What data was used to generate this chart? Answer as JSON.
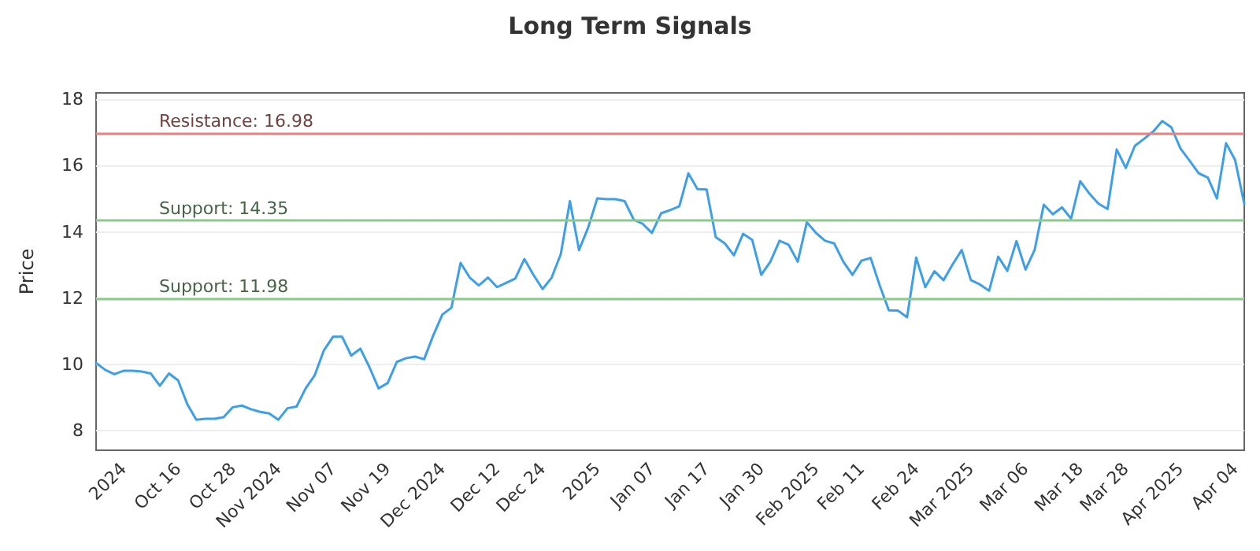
{
  "chart_data": {
    "type": "line",
    "title": "Long Term Signals",
    "ylabel": "Price",
    "categories": [
      null,
      null,
      null,
      "2024",
      null,
      null,
      null,
      null,
      null,
      "Oct 16",
      null,
      null,
      null,
      null,
      null,
      "Oct 28",
      null,
      null,
      null,
      null,
      "Nov 2024",
      null,
      null,
      null,
      null,
      null,
      "Nov 07",
      null,
      null,
      null,
      null,
      null,
      "Nov 19",
      null,
      null,
      null,
      null,
      null,
      "Dec 2024",
      null,
      null,
      null,
      null,
      null,
      "Dec 12",
      null,
      null,
      null,
      null,
      "Dec 24",
      null,
      null,
      null,
      null,
      null,
      "2025",
      null,
      null,
      null,
      null,
      null,
      "Jan 07",
      null,
      null,
      null,
      null,
      null,
      "Jan 17",
      null,
      null,
      null,
      null,
      null,
      "Jan 30",
      null,
      null,
      null,
      null,
      null,
      "Feb 2025",
      null,
      null,
      null,
      null,
      "Feb 11",
      null,
      null,
      null,
      null,
      null,
      "Feb 24",
      null,
      null,
      null,
      null,
      null,
      "Mar 2025",
      null,
      null,
      null,
      null,
      null,
      "Mar 06",
      null,
      null,
      null,
      null,
      null,
      "Mar 18",
      null,
      null,
      null,
      null,
      "Mar 28",
      null,
      null,
      null,
      null,
      null,
      "Apr 2025",
      null,
      null,
      null,
      null,
      null,
      "Apr 04",
      null
    ],
    "series": [
      {
        "color": "#3d9fe8",
        "values": [
          10.04,
          9.83,
          9.7,
          9.8,
          9.8,
          9.78,
          9.72,
          9.35,
          9.72,
          9.51,
          8.8,
          8.32,
          8.35,
          8.35,
          8.4,
          8.7,
          8.75,
          8.64,
          8.56,
          8.51,
          8.32,
          8.67,
          8.72,
          9.27,
          9.67,
          10.42,
          10.83,
          10.83,
          10.26,
          10.47,
          9.91,
          9.27,
          9.43,
          10.07,
          10.18,
          10.23,
          10.15,
          10.87,
          11.5,
          11.71,
          13.06,
          12.62,
          12.38,
          12.62,
          12.33,
          12.46,
          12.59,
          13.18,
          12.7,
          12.27,
          12.62,
          13.33,
          14.93,
          13.45,
          14.13,
          15.01,
          14.99,
          14.99,
          14.93,
          14.37,
          14.24,
          13.97,
          14.56,
          14.66,
          14.77,
          15.77,
          15.29,
          15.28,
          13.84,
          13.65,
          13.29,
          13.94,
          13.76,
          12.7,
          13.1,
          13.73,
          13.61,
          13.1,
          14.29,
          13.97,
          13.73,
          13.65,
          13.1,
          12.7,
          13.13,
          13.21,
          12.38,
          11.63,
          11.62,
          11.42,
          13.22,
          12.33,
          12.81,
          12.54,
          13.02,
          13.45,
          12.54,
          12.41,
          12.22,
          13.25,
          12.82,
          13.72,
          12.86,
          13.46,
          14.82,
          14.53,
          14.74,
          14.4,
          15.53,
          15.16,
          14.85,
          14.69,
          16.49,
          15.93,
          16.6,
          16.81,
          17.03,
          17.35,
          17.16,
          16.52,
          16.15,
          15.77,
          15.64,
          15.01,
          16.68,
          16.17,
          14.85
        ]
      }
    ],
    "ylim": [
      7.4,
      18.2
    ],
    "yticks": [
      8,
      10,
      12,
      14,
      16,
      18
    ],
    "grid": "y",
    "marker": "none",
    "line_style": "solid",
    "ref_lines": [
      {
        "axis": "y",
        "value": 16.98,
        "label": "Resistance: 16.98",
        "color": "#e88080"
      },
      {
        "axis": "y",
        "value": 14.35,
        "label": "Support: 14.35",
        "color": "#8cc98c"
      },
      {
        "axis": "y",
        "value": 11.98,
        "label": "Support: 11.98",
        "color": "#8cc98c"
      }
    ]
  }
}
